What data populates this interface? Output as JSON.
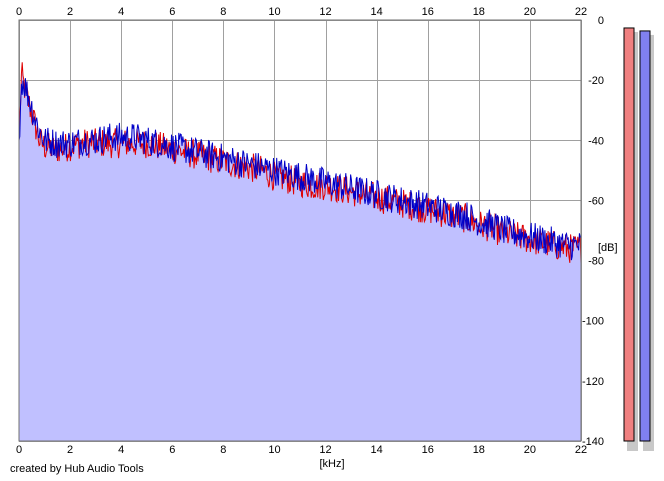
{
  "credit": "created by Hub Audio Tools",
  "chart_data": {
    "type": "area",
    "title": "",
    "xlabel": "[kHz]",
    "ylabel": "[dB]",
    "xlim": [
      0,
      22
    ],
    "ylim": [
      -140,
      0
    ],
    "x_ticks": [
      0,
      2,
      4,
      6,
      8,
      10,
      12,
      14,
      16,
      18,
      20,
      22
    ],
    "y_ticks": [
      0,
      -20,
      -40,
      -60,
      -80,
      -100,
      -120,
      -140
    ],
    "y_tick_labels": [
      "0",
      "-20",
      "-40",
      "-60",
      "-80",
      "-100",
      "-120",
      "-140"
    ],
    "grid": true,
    "x_axis_labels_top_and_bottom": true,
    "colors": {
      "fill": "#c0c0ff",
      "left": "#e00000",
      "right": "#0000c8",
      "grid": "#a0a0a0",
      "meter_left": "#f08080",
      "meter_right": "#8080f0"
    },
    "series": [
      {
        "channel": "left",
        "x": [
          0,
          0.1,
          0.2,
          0.4,
          0.6,
          0.8,
          1,
          1.5,
          2,
          2.5,
          3,
          3.5,
          4,
          4.5,
          5,
          5.5,
          6,
          6.5,
          7,
          7.5,
          8,
          8.5,
          9,
          9.5,
          10,
          10.5,
          11,
          11.5,
          12,
          12.5,
          13,
          13.5,
          14,
          14.5,
          15,
          15.5,
          16,
          16.5,
          17,
          17.5,
          18,
          18.5,
          19,
          19.5,
          20,
          20.5,
          21,
          21.5,
          22
        ],
        "values": [
          -40,
          -18,
          -22,
          -28,
          -34,
          -40,
          -42,
          -43,
          -42,
          -41,
          -41,
          -41,
          -41,
          -41,
          -41,
          -42,
          -43,
          -44,
          -45,
          -46,
          -47,
          -48,
          -49,
          -50,
          -52,
          -53,
          -54,
          -55,
          -55,
          -56,
          -57,
          -58,
          -59,
          -60,
          -61,
          -62,
          -63,
          -64,
          -65,
          -66,
          -68,
          -69,
          -71,
          -72,
          -73,
          -74,
          -75,
          -76,
          -76
        ]
      },
      {
        "channel": "right",
        "x": [
          0,
          0.1,
          0.2,
          0.4,
          0.6,
          0.8,
          1,
          1.5,
          2,
          2.5,
          3,
          3.5,
          4,
          4.5,
          5,
          5.5,
          6,
          6.5,
          7,
          7.5,
          8,
          8.5,
          9,
          9.5,
          10,
          10.5,
          11,
          11.5,
          12,
          12.5,
          13,
          13.5,
          14,
          14.5,
          15,
          15.5,
          16,
          16.5,
          17,
          17.5,
          18,
          18.5,
          19,
          19.5,
          20,
          20.5,
          21,
          21.5,
          22
        ],
        "values": [
          -40,
          -20,
          -21,
          -26,
          -32,
          -37,
          -40,
          -41,
          -41,
          -40,
          -40,
          -39,
          -39,
          -39,
          -40,
          -41,
          -42,
          -43,
          -44,
          -45,
          -46,
          -47,
          -48,
          -49,
          -50,
          -51,
          -52,
          -53,
          -54,
          -55,
          -56,
          -57,
          -58,
          -59,
          -60,
          -61,
          -62,
          -63,
          -64,
          -65,
          -67,
          -68,
          -70,
          -71,
          -72,
          -73,
          -74,
          -75,
          -75
        ]
      }
    ],
    "level_meters": {
      "left": -1,
      "right": -2
    }
  }
}
